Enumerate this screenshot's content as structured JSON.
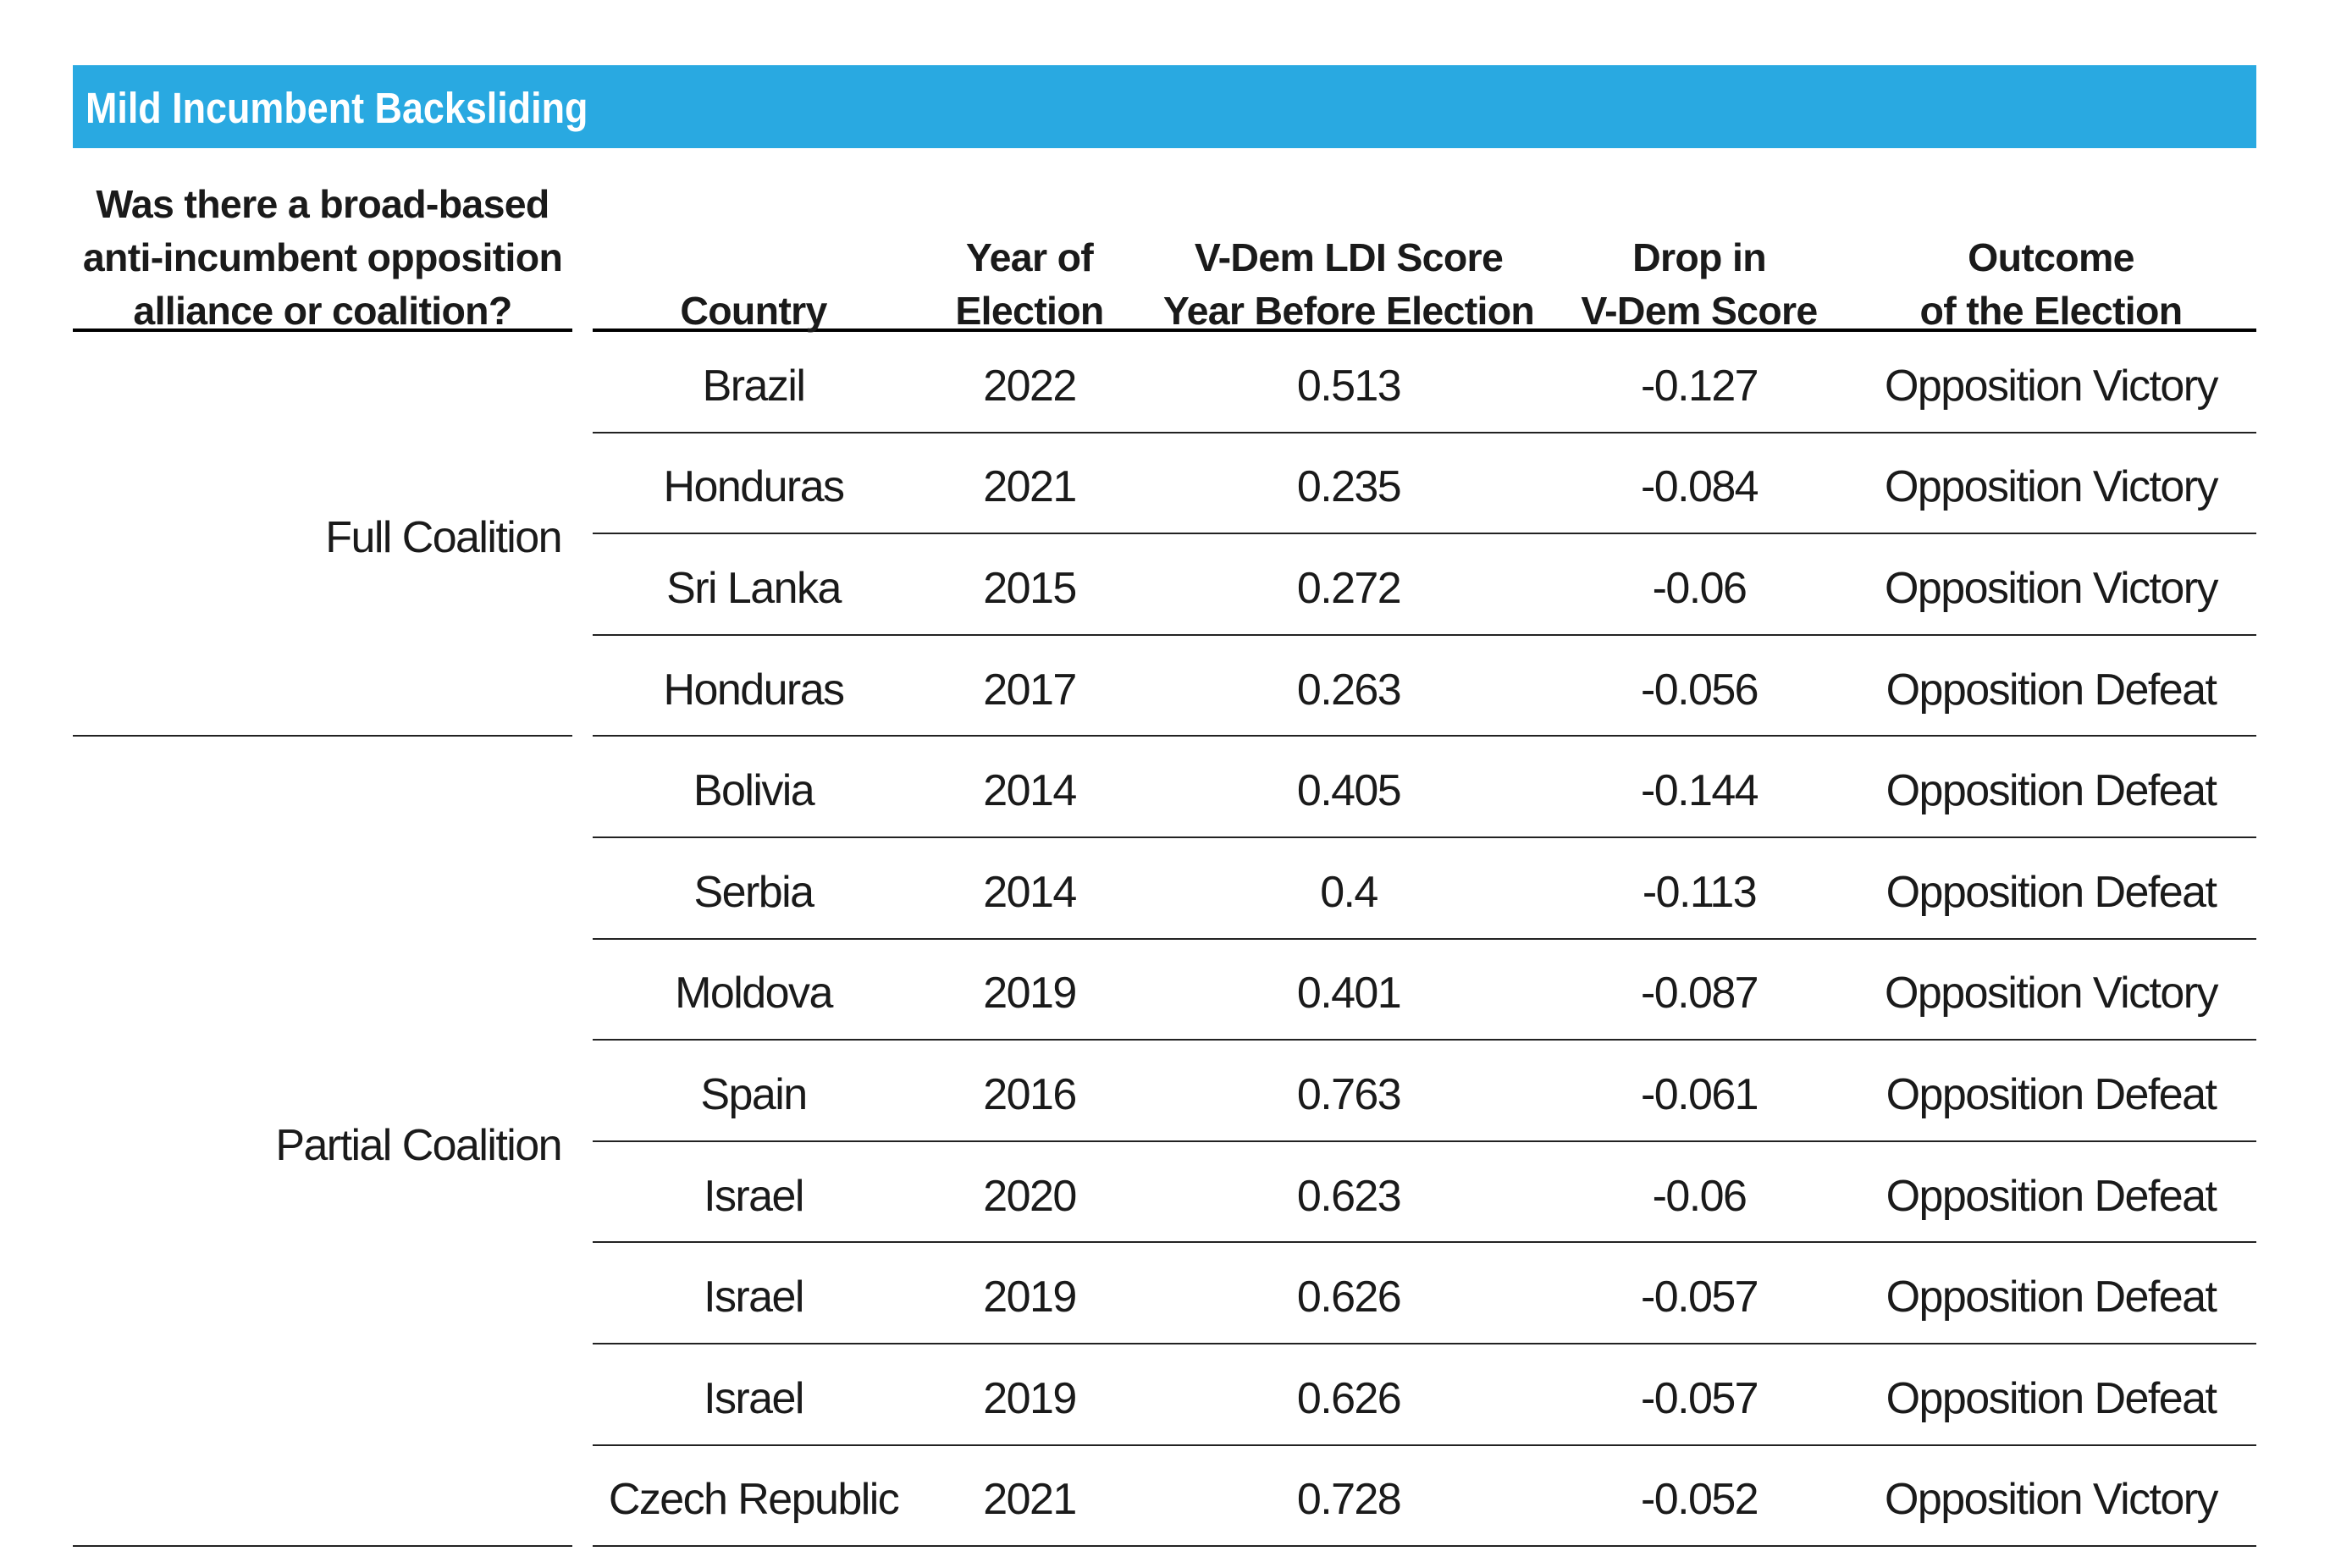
{
  "banner": {
    "title": "Mild Incumbent Backsliding",
    "bg_color": "#29A9E1",
    "text_color": "#FFFFFF"
  },
  "table": {
    "group_column_header": "Was there a broad-based\nanti-incumbent opposition\nalliance or coalition?",
    "columns": [
      {
        "key": "country",
        "label": "Country"
      },
      {
        "key": "year",
        "label": "Year of\nElection"
      },
      {
        "key": "score",
        "label": "V-Dem LDI Score\nYear Before Election"
      },
      {
        "key": "drop",
        "label": "Drop in\nV-Dem Score"
      },
      {
        "key": "outcome",
        "label": "Outcome\nof the Election"
      }
    ],
    "groups": [
      {
        "label": "Full Coalition",
        "rows": [
          {
            "country": "Brazil",
            "year": "2022",
            "score": "0.513",
            "drop": "-0.127",
            "outcome": "Opposition Victory"
          },
          {
            "country": "Honduras",
            "year": "2021",
            "score": "0.235",
            "drop": "-0.084",
            "outcome": "Opposition Victory"
          },
          {
            "country": "Sri Lanka",
            "year": "2015",
            "score": "0.272",
            "drop": "-0.06",
            "outcome": "Opposition Victory"
          },
          {
            "country": "Honduras",
            "year": "2017",
            "score": "0.263",
            "drop": "-0.056",
            "outcome": "Opposition Defeat"
          }
        ]
      },
      {
        "label": "Partial Coalition",
        "rows": [
          {
            "country": "Bolivia",
            "year": "2014",
            "score": "0.405",
            "drop": "-0.144",
            "outcome": "Opposition Defeat"
          },
          {
            "country": "Serbia",
            "year": "2014",
            "score": "0.4",
            "drop": "-0.113",
            "outcome": "Opposition Defeat"
          },
          {
            "country": "Moldova",
            "year": "2019",
            "score": "0.401",
            "drop": "-0.087",
            "outcome": "Opposition Victory"
          },
          {
            "country": "Spain",
            "year": "2016",
            "score": "0.763",
            "drop": "-0.061",
            "outcome": "Opposition Defeat"
          },
          {
            "country": "Israel",
            "year": "2020",
            "score": "0.623",
            "drop": "-0.06",
            "outcome": "Opposition Defeat"
          },
          {
            "country": "Israel",
            "year": "2019",
            "score": "0.626",
            "drop": "-0.057",
            "outcome": "Opposition Defeat"
          },
          {
            "country": "Israel",
            "year": "2019",
            "score": "0.626",
            "drop": "-0.057",
            "outcome": "Opposition Defeat"
          },
          {
            "country": "Czech Republic",
            "year": "2021",
            "score": "0.728",
            "drop": "-0.052",
            "outcome": "Opposition Victory"
          }
        ]
      }
    ]
  },
  "chart_data": {
    "type": "table",
    "title": "Mild Incumbent Backsliding",
    "columns": [
      "Was there a broad-based anti-incumbent opposition alliance or coalition?",
      "Country",
      "Year of Election",
      "V-Dem LDI Score Year Before Election",
      "Drop in V-Dem Score",
      "Outcome of the Election"
    ],
    "rows": [
      [
        "Full Coalition",
        "Brazil",
        2022,
        0.513,
        -0.127,
        "Opposition Victory"
      ],
      [
        "Full Coalition",
        "Honduras",
        2021,
        0.235,
        -0.084,
        "Opposition Victory"
      ],
      [
        "Full Coalition",
        "Sri Lanka",
        2015,
        0.272,
        -0.06,
        "Opposition Victory"
      ],
      [
        "Full Coalition",
        "Honduras",
        2017,
        0.263,
        -0.056,
        "Opposition Defeat"
      ],
      [
        "Partial Coalition",
        "Bolivia",
        2014,
        0.405,
        -0.144,
        "Opposition Defeat"
      ],
      [
        "Partial Coalition",
        "Serbia",
        2014,
        0.4,
        -0.113,
        "Opposition Defeat"
      ],
      [
        "Partial Coalition",
        "Moldova",
        2019,
        0.401,
        -0.087,
        "Opposition Victory"
      ],
      [
        "Partial Coalition",
        "Spain",
        2016,
        0.763,
        -0.061,
        "Opposition Defeat"
      ],
      [
        "Partial Coalition",
        "Israel",
        2020,
        0.623,
        -0.06,
        "Opposition Defeat"
      ],
      [
        "Partial Coalition",
        "Israel",
        2019,
        0.626,
        -0.057,
        "Opposition Defeat"
      ],
      [
        "Partial Coalition",
        "Israel",
        2019,
        0.626,
        -0.057,
        "Opposition Defeat"
      ],
      [
        "Partial Coalition",
        "Czech Republic",
        2021,
        0.728,
        -0.052,
        "Opposition Victory"
      ]
    ]
  }
}
